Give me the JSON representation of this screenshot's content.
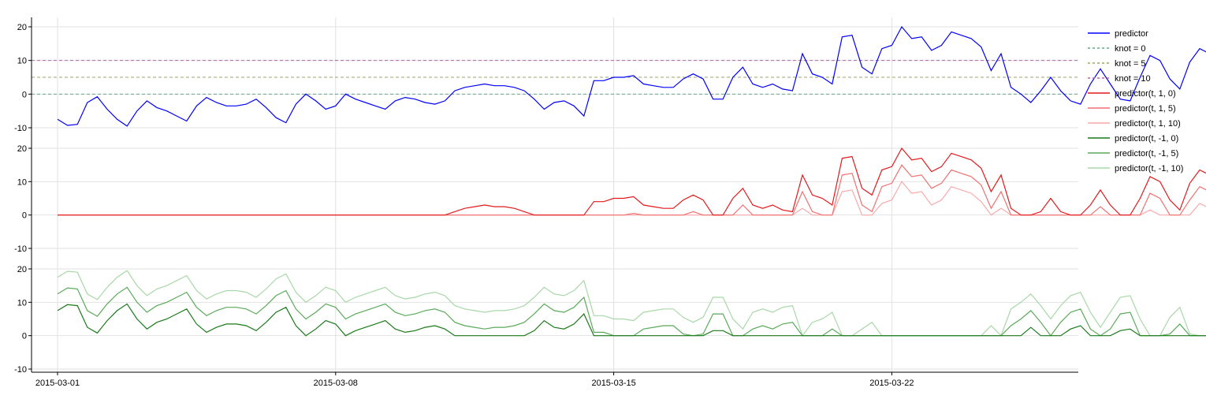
{
  "chart_data": {
    "type": "line",
    "x_ticks": [
      "2015-03-01",
      "2015-03-08",
      "2015-03-15",
      "2015-03-22"
    ],
    "x_range": [
      "2015-03-01",
      "2015-03-26"
    ],
    "grid": true,
    "legend_position": "right",
    "legend": [
      {
        "label": "predictor",
        "color": "#0000ff",
        "dash": false
      },
      {
        "label": "knot = 0",
        "color": "#6aa58a",
        "dash": true
      },
      {
        "label": "knot = 5",
        "color": "#9aa56a",
        "dash": true
      },
      {
        "label": "knot = 10",
        "color": "#b06aa5",
        "dash": true
      },
      {
        "label": "predictor(t, 1, 0)",
        "color": "#e31a1c",
        "dash": false
      },
      {
        "label": "predictor(t, 1, 5)",
        "color": "#f07070",
        "dash": false
      },
      {
        "label": "predictor(t, 1, 10)",
        "color": "#f7aaaa",
        "dash": false
      },
      {
        "label": "predictor(t, -1, 0)",
        "color": "#1a7a1a",
        "dash": false
      },
      {
        "label": "predictor(t, -1, 5)",
        "color": "#5aaa5a",
        "dash": false
      },
      {
        "label": "predictor(t, -1, 10)",
        "color": "#a8d8a8",
        "dash": false
      }
    ],
    "panels": [
      {
        "name": "predictor-panel",
        "ylim": [
          -10,
          20
        ],
        "yticks": [
          "20",
          "10",
          "0",
          "-10"
        ],
        "hlines": [
          {
            "y": 0,
            "color": "#6aa58a"
          },
          {
            "y": 5,
            "color": "#9aa56a"
          },
          {
            "y": 10,
            "color": "#b06aa5"
          }
        ],
        "series": [
          {
            "label": "predictor",
            "color": "#0000ff",
            "source": "predictor",
            "mode": "raw",
            "k": 0
          }
        ]
      },
      {
        "name": "positive-hinge-panel",
        "ylim": [
          -10,
          20
        ],
        "yticks": [
          "20",
          "10",
          "0",
          "-10"
        ],
        "hlines": [],
        "series": [
          {
            "label": "predictor(t, 1, 10)",
            "color": "#f7aaaa",
            "source": "predictor",
            "mode": "pos",
            "k": 10
          },
          {
            "label": "predictor(t, 1, 5)",
            "color": "#f07070",
            "source": "predictor",
            "mode": "pos",
            "k": 5
          },
          {
            "label": "predictor(t, 1, 0)",
            "color": "#e31a1c",
            "source": "predictor",
            "mode": "pos",
            "k": 0
          }
        ]
      },
      {
        "name": "negative-hinge-panel",
        "ylim": [
          -10,
          20
        ],
        "yticks": [
          "20",
          "10",
          "0",
          "-10"
        ],
        "hlines": [],
        "series": [
          {
            "label": "predictor(t, -1, 10)",
            "color": "#a8d8a8",
            "source": "predictor",
            "mode": "neg",
            "k": 10
          },
          {
            "label": "predictor(t, -1, 5)",
            "color": "#5aaa5a",
            "source": "predictor",
            "mode": "neg",
            "k": 5
          },
          {
            "label": "predictor(t, -1, 0)",
            "color": "#1a7a1a",
            "source": "predictor",
            "mode": "neg",
            "k": 0
          }
        ]
      }
    ],
    "predictor": {
      "x_start": "2015-03-01",
      "x_step_days": 0.25,
      "values": [
        -7.5,
        -9.3,
        -9.0,
        -2.5,
        -0.8,
        -4.5,
        -7.5,
        -9.5,
        -5.0,
        -2.0,
        -4.0,
        -5.0,
        -6.5,
        -8.0,
        -3.5,
        -1.0,
        -2.5,
        -3.5,
        -3.5,
        -3.0,
        -1.5,
        -4.0,
        -7.0,
        -8.5,
        -3.0,
        0.0,
        -2.0,
        -4.5,
        -3.5,
        0.0,
        -1.5,
        -2.5,
        -3.5,
        -4.5,
        -2.0,
        -1.0,
        -1.5,
        -2.5,
        -3.0,
        -2.0,
        1.0,
        2.0,
        2.5,
        3.0,
        2.5,
        2.5,
        2.0,
        1.0,
        -1.5,
        -4.5,
        -2.5,
        -2.0,
        -3.5,
        -6.5,
        4.0,
        4.0,
        5.0,
        5.0,
        5.5,
        3.0,
        2.5,
        2.0,
        2.0,
        4.5,
        6.0,
        4.5,
        -1.5,
        -1.5,
        5.0,
        8.0,
        3.0,
        2.0,
        3.0,
        1.5,
        1.0,
        12.0,
        6.0,
        5.0,
        3.0,
        17.0,
        17.5,
        8.0,
        6.0,
        13.5,
        14.5,
        20.0,
        16.5,
        17.0,
        13.0,
        14.5,
        18.5,
        17.5,
        16.5,
        14.0,
        7.0,
        12.0,
        2.0,
        0.0,
        -2.5,
        1.0,
        5.0,
        1.0,
        -2.0,
        -3.0,
        3.0,
        7.5,
        3.0,
        -1.5,
        -2.0,
        5.0,
        11.5,
        10.0,
        4.5,
        1.5,
        9.5,
        13.5,
        12.0,
        7.0,
        6.0,
        12.0,
        16.0,
        12.0,
        6.0,
        5.5,
        11.0,
        15.5,
        13.5,
        10.5
      ]
    }
  }
}
